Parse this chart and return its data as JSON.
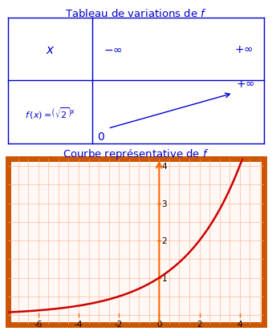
{
  "table_color": "#0000cc",
  "axis_color": "#ff6600",
  "curve_color": "#cc0000",
  "border_color": "#cc5500",
  "grid_color": "#ffaa88",
  "bg_color": "#ffffff",
  "graph_bg": "#fff8f4",
  "label_color": "#000000",
  "x_min": -7.5,
  "x_max": 5.2,
  "y_min": -0.25,
  "y_max": 4.2,
  "x_ticks": [
    -6,
    -4,
    -2,
    0,
    2,
    4
  ],
  "y_ticks": [
    1,
    2,
    3,
    4
  ],
  "figsize": [
    3.39,
    4.14
  ],
  "dpi": 100
}
